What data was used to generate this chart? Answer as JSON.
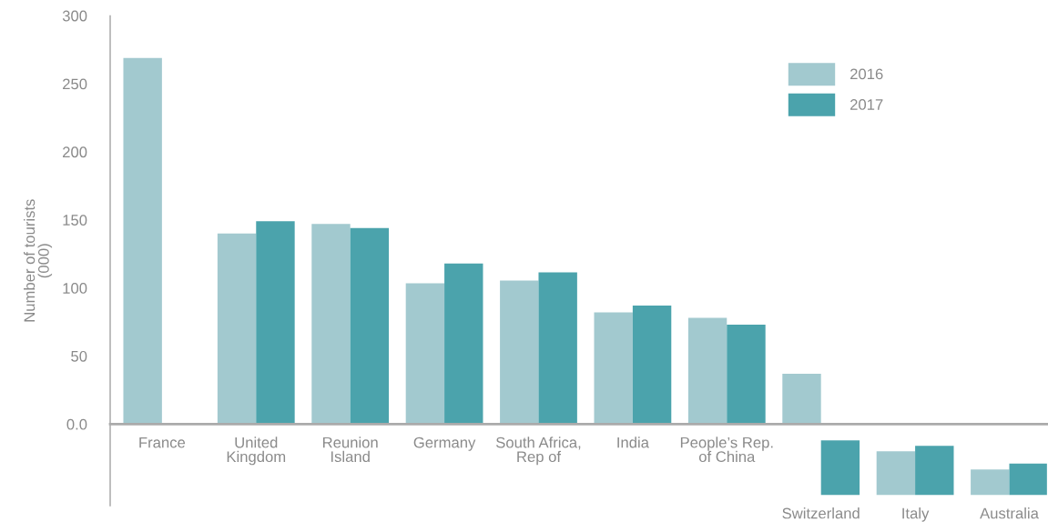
{
  "chart_data": {
    "type": "bar",
    "ylabel": "Number of tourists\n(000)",
    "categories": [
      "France",
      "United\nKingdom",
      "Reunion\nIsland",
      "Germany",
      "South Africa,\nRep of",
      "India",
      "People’s Rep.\nof China",
      "Switzerland",
      "Italy",
      "Australia"
    ],
    "series": [
      {
        "name": "2016",
        "color": "#a2c9cf",
        "values": [
          269,
          140,
          147,
          103.5,
          105.5,
          82,
          78,
          37,
          32,
          18.7
        ],
        "base": [
          0,
          0,
          0,
          0,
          0,
          0,
          0,
          0,
          -52,
          -52
        ]
      },
      {
        "name": "2017",
        "color": "#4ba3ac",
        "values": [
          null,
          149,
          144,
          118,
          111.5,
          87,
          73,
          40,
          36,
          23
        ],
        "base": [
          null,
          0,
          0,
          0,
          0,
          0,
          0,
          -52,
          -52,
          -52
        ]
      }
    ],
    "ylim": [
      -60,
      300
    ],
    "yticks": [
      {
        "value": 0,
        "label": "0.0"
      },
      50,
      100,
      150,
      200,
      250,
      300
    ],
    "grid": false,
    "legend": "top right"
  }
}
